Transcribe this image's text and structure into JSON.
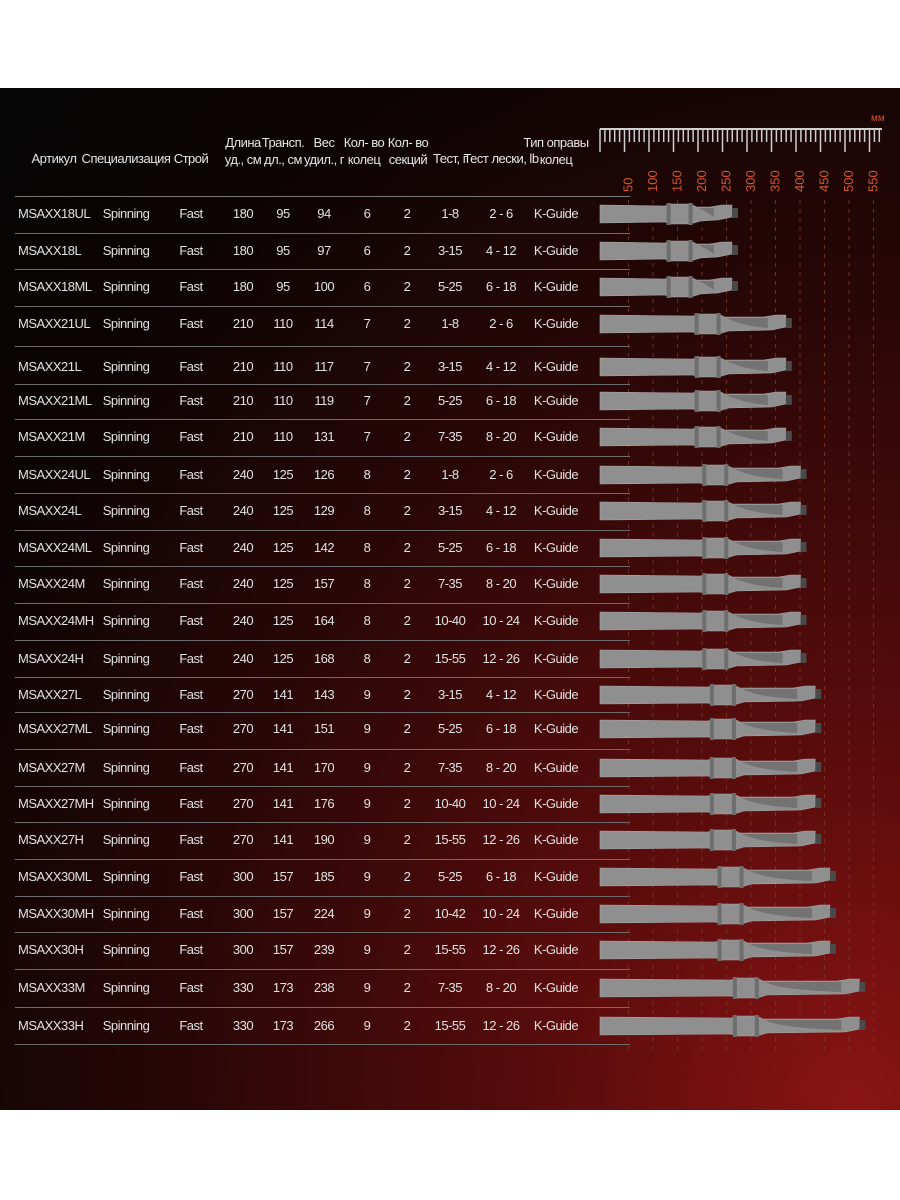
{
  "headers": {
    "article": "Артикул",
    "specialization": "Специализация",
    "action": "Строй",
    "length": "Длина\nуд., см",
    "transport": "Трансп.\nдл., см",
    "weight": "Вес\nудил., г",
    "rings": "Кол- во\nколец",
    "sections": "Кол- во\nсекций",
    "test": "Тест, г",
    "line_test": "Тест лески, lb",
    "guide_type": "Тип оправы\nколец"
  },
  "scale": {
    "unit": "мм",
    "labels": [
      "50",
      "100",
      "150",
      "200",
      "250",
      "300",
      "350",
      "400",
      "450",
      "500",
      "550"
    ]
  },
  "rows": [
    {
      "article": "MSAXX18UL",
      "spec": "Spinning",
      "action": "Fast",
      "length": "180",
      "transport": "95",
      "weight": "94",
      "rings": "6",
      "sections": "2",
      "test": "1-8",
      "line": "2 - 6",
      "guide": "K-Guide",
      "handle_mm": 310
    },
    {
      "article": "MSAXX18L",
      "spec": "Spinning",
      "action": "Fast",
      "length": "180",
      "transport": "95",
      "weight": "97",
      "rings": "6",
      "sections": "2",
      "test": "3-15",
      "line": "4 - 12",
      "guide": "K-Guide",
      "handle_mm": 310
    },
    {
      "article": "MSAXX18ML",
      "spec": "Spinning",
      "action": "Fast",
      "length": "180",
      "transport": "95",
      "weight": "100",
      "rings": "6",
      "sections": "2",
      "test": "5-25",
      "line": "6 - 18",
      "guide": "K-Guide",
      "handle_mm": 310
    },
    {
      "article": "MSAXX21UL",
      "spec": "Spinning",
      "action": "Fast",
      "length": "210",
      "transport": "110",
      "weight": "114",
      "rings": "7",
      "sections": "2",
      "test": "1-8",
      "line": "2 - 6",
      "guide": "K-Guide",
      "handle_mm": 420
    },
    {
      "article": "MSAXX21L",
      "spec": "Spinning",
      "action": "Fast",
      "length": "210",
      "transport": "110",
      "weight": "117",
      "rings": "7",
      "sections": "2",
      "test": "3-15",
      "line": "4 - 12",
      "guide": "K-Guide",
      "handle_mm": 420
    },
    {
      "article": "MSAXX21ML",
      "spec": "Spinning",
      "action": "Fast",
      "length": "210",
      "transport": "110",
      "weight": "119",
      "rings": "7",
      "sections": "2",
      "test": "5-25",
      "line": "6 - 18",
      "guide": "K-Guide",
      "handle_mm": 420
    },
    {
      "article": "MSAXX21M",
      "spec": "Spinning",
      "action": "Fast",
      "length": "210",
      "transport": "110",
      "weight": "131",
      "rings": "7",
      "sections": "2",
      "test": "7-35",
      "line": "8 - 20",
      "guide": "K-Guide",
      "handle_mm": 420
    },
    {
      "article": "MSAXX24UL",
      "spec": "Spinning",
      "action": "Fast",
      "length": "240",
      "transport": "125",
      "weight": "126",
      "rings": "8",
      "sections": "2",
      "test": "1-8",
      "line": "2 - 6",
      "guide": "K-Guide",
      "handle_mm": 450
    },
    {
      "article": "MSAXX24L",
      "spec": "Spinning",
      "action": "Fast",
      "length": "240",
      "transport": "125",
      "weight": "129",
      "rings": "8",
      "sections": "2",
      "test": "3-15",
      "line": "4 - 12",
      "guide": "K-Guide",
      "handle_mm": 450
    },
    {
      "article": "MSAXX24ML",
      "spec": "Spinning",
      "action": "Fast",
      "length": "240",
      "transport": "125",
      "weight": "142",
      "rings": "8",
      "sections": "2",
      "test": "5-25",
      "line": "6 - 18",
      "guide": "K-Guide",
      "handle_mm": 450
    },
    {
      "article": "MSAXX24M",
      "spec": "Spinning",
      "action": "Fast",
      "length": "240",
      "transport": "125",
      "weight": "157",
      "rings": "8",
      "sections": "2",
      "test": "7-35",
      "line": "8 - 20",
      "guide": "K-Guide",
      "handle_mm": 450
    },
    {
      "article": "MSAXX24MH",
      "spec": "Spinning",
      "action": "Fast",
      "length": "240",
      "transport": "125",
      "weight": "164",
      "rings": "8",
      "sections": "2",
      "test": "10-40",
      "line": "10 - 24",
      "guide": "K-Guide",
      "handle_mm": 450
    },
    {
      "article": "MSAXX24H",
      "spec": "Spinning",
      "action": "Fast",
      "length": "240",
      "transport": "125",
      "weight": "168",
      "rings": "8",
      "sections": "2",
      "test": "15-55",
      "line": "12 - 26",
      "guide": "K-Guide",
      "handle_mm": 450
    },
    {
      "article": "MSAXX27L",
      "spec": "Spinning",
      "action": "Fast",
      "length": "270",
      "transport": "141",
      "weight": "143",
      "rings": "9",
      "sections": "2",
      "test": "3-15",
      "line": "4 - 12",
      "guide": "K-Guide",
      "handle_mm": 480
    },
    {
      "article": "MSAXX27ML",
      "spec": "Spinning",
      "action": "Fast",
      "length": "270",
      "transport": "141",
      "weight": "151",
      "rings": "9",
      "sections": "2",
      "test": "5-25",
      "line": "6 - 18",
      "guide": "K-Guide",
      "handle_mm": 480
    },
    {
      "article": "MSAXX27M",
      "spec": "Spinning",
      "action": "Fast",
      "length": "270",
      "transport": "141",
      "weight": "170",
      "rings": "9",
      "sections": "2",
      "test": "7-35",
      "line": "8 - 20",
      "guide": "K-Guide",
      "handle_mm": 480
    },
    {
      "article": "MSAXX27MH",
      "spec": "Spinning",
      "action": "Fast",
      "length": "270",
      "transport": "141",
      "weight": "176",
      "rings": "9",
      "sections": "2",
      "test": "10-40",
      "line": "10 - 24",
      "guide": "K-Guide",
      "handle_mm": 480
    },
    {
      "article": "MSAXX27H",
      "spec": "Spinning",
      "action": "Fast",
      "length": "270",
      "transport": "141",
      "weight": "190",
      "rings": "9",
      "sections": "2",
      "test": "15-55",
      "line": "12 - 26",
      "guide": "K-Guide",
      "handle_mm": 480
    },
    {
      "article": "MSAXX30ML",
      "spec": "Spinning",
      "action": "Fast",
      "length": "300",
      "transport": "157",
      "weight": "185",
      "rings": "9",
      "sections": "2",
      "test": "5-25",
      "line": "6 - 18",
      "guide": "K-Guide",
      "handle_mm": 510
    },
    {
      "article": "MSAXX30MH",
      "spec": "Spinning",
      "action": "Fast",
      "length": "300",
      "transport": "157",
      "weight": "224",
      "rings": "9",
      "sections": "2",
      "test": "10-42",
      "line": "10 - 24",
      "guide": "K-Guide",
      "handle_mm": 510
    },
    {
      "article": "MSAXX30H",
      "spec": "Spinning",
      "action": "Fast",
      "length": "300",
      "transport": "157",
      "weight": "239",
      "rings": "9",
      "sections": "2",
      "test": "15-55",
      "line": "12 - 26",
      "guide": "K-Guide",
      "handle_mm": 510
    },
    {
      "article": "MSAXX33M",
      "spec": "Spinning",
      "action": "Fast",
      "length": "330",
      "transport": "173",
      "weight": "238",
      "rings": "9",
      "sections": "2",
      "test": "7-35",
      "line": "8 - 20",
      "guide": "K-Guide",
      "handle_mm": 570
    },
    {
      "article": "MSAXX33H",
      "spec": "Spinning",
      "action": "Fast",
      "length": "330",
      "transport": "173",
      "weight": "266",
      "rings": "9",
      "sections": "2",
      "test": "15-55",
      "line": "12 - 26",
      "guide": "K-Guide",
      "handle_mm": 570
    }
  ],
  "colors": {
    "background": "#050505",
    "accent_red": "#8a1414",
    "scale_orange": "#d2572f",
    "handle_gray": "#8f8f8f",
    "text": "#e2e2e2"
  }
}
